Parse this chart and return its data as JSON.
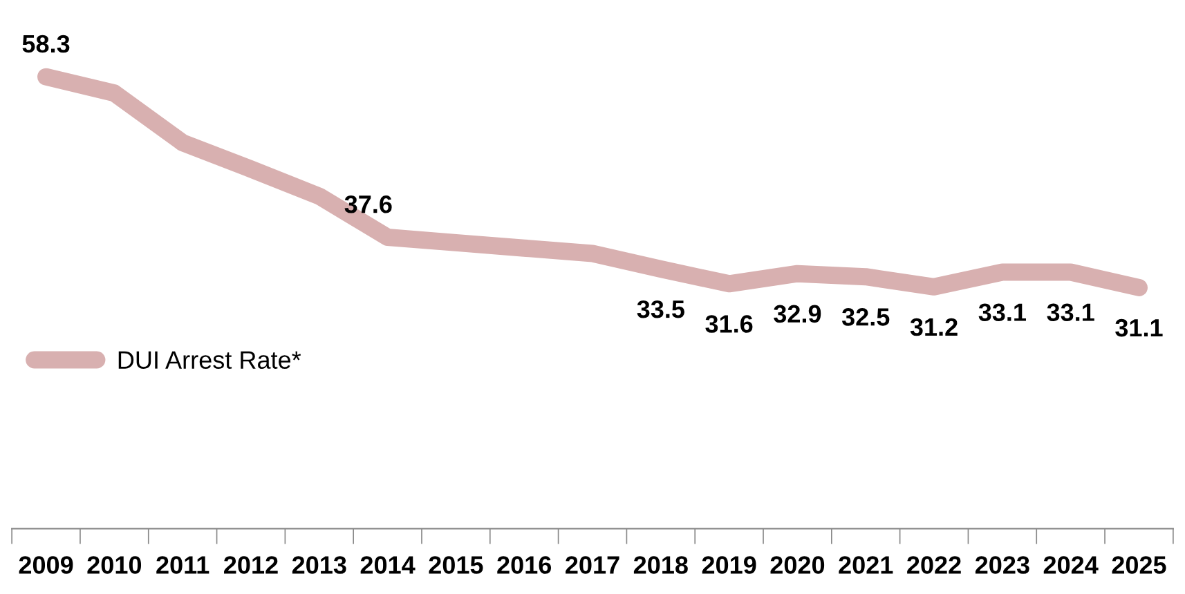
{
  "chart_data": {
    "type": "line",
    "categories": [
      "2009",
      "2010",
      "2011",
      "2012",
      "2013",
      "2014",
      "2015",
      "2016",
      "2017",
      "2018",
      "2019",
      "2020",
      "2021",
      "2022",
      "2023",
      "2024",
      "2025"
    ],
    "series": [
      {
        "name": "DUI Arrest Rate*",
        "color": "#d8b0b0",
        "values": [
          58.3,
          56.2,
          49.8,
          46.4,
          42.9,
          37.6,
          36.9,
          36.2,
          35.5,
          33.5,
          31.6,
          32.9,
          32.5,
          31.2,
          33.1,
          33.1,
          31.1
        ],
        "value_labels": [
          "58.3",
          null,
          null,
          null,
          null,
          "37.6",
          null,
          null,
          null,
          "33.5",
          "31.6",
          "32.9",
          "32.5",
          "31.2",
          "33.1",
          "33.1",
          "31.1"
        ]
      }
    ],
    "legend": "left",
    "grid": false,
    "line_style": "solid"
  }
}
